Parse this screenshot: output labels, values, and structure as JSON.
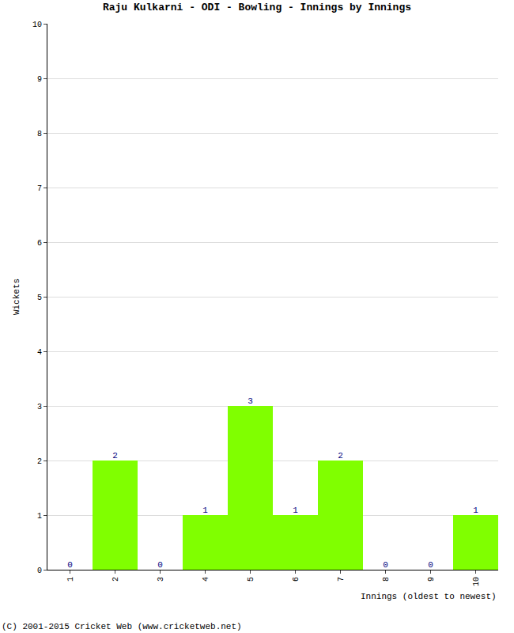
{
  "chart_data": {
    "type": "bar",
    "title": "Raju Kulkarni - ODI - Bowling - Innings by Innings",
    "x_label": "Innings (oldest to newest)",
    "y_label": "Wickets",
    "categories": [
      "1",
      "2",
      "3",
      "4",
      "5",
      "6",
      "7",
      "8",
      "9",
      "10"
    ],
    "values": [
      0,
      2,
      0,
      1,
      3,
      1,
      2,
      0,
      0,
      1
    ],
    "color": "#80ff00",
    "ylim": [
      0,
      10
    ],
    "yticks": [
      0,
      1,
      2,
      3,
      4,
      5,
      6,
      7,
      8,
      9,
      10
    ],
    "grid": true,
    "data_labels": true,
    "annotations": [
      "(C) 2001-2015 Cricket Web (www.cricketweb.net)"
    ]
  }
}
